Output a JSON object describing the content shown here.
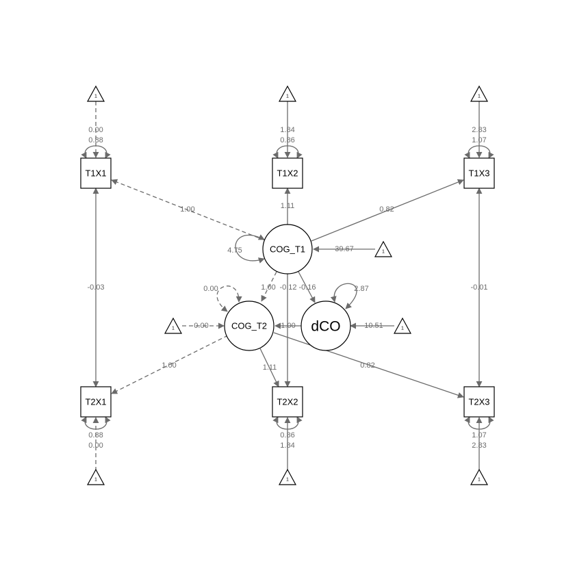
{
  "diagram": {
    "nodes": {
      "T1X1": "T1X1",
      "T1X2": "T1X2",
      "T1X3": "T1X3",
      "T2X1": "T2X1",
      "T2X2": "T2X2",
      "T2X3": "T2X3",
      "COG_T1": "COG_T1",
      "COG_T2": "COG_T2",
      "dCO": "dCO",
      "const": "1"
    },
    "labels": {
      "int_T1X1": "0.00",
      "var_T1X1": "0.88",
      "int_T1X2": "1.84",
      "var_T1X2": "0.86",
      "int_T1X3": "2.83",
      "var_T1X3": "1.07",
      "int_T2X1": "0.00",
      "var_T2X1": "0.88",
      "int_T2X2": "1.84",
      "var_T2X2": "0.86",
      "int_T2X3": "2.83",
      "var_T2X3": "1.07",
      "cog1_T1X1": "1.00",
      "cog1_T1X2": "1.11",
      "cog1_T1X3": "0.82",
      "cog2_T2X1": "1.00",
      "cog2_T2X2": "1.11",
      "cog2_T2X3": "0.82",
      "cov_X1": "-0.03",
      "cov_X3": "-0.01",
      "var_COG_T1": "4.75",
      "int_COG_T1": "39.67",
      "var_COG_T2": "0.00",
      "int_COG_T2": "0.00",
      "var_dCO": "2.87",
      "int_dCO": "10.51",
      "cog1_cog2": "1.00",
      "cog1_T2X2": "-0.12",
      "cog1_dCO": "-0.16",
      "dCO_cog2": "1.00"
    }
  }
}
